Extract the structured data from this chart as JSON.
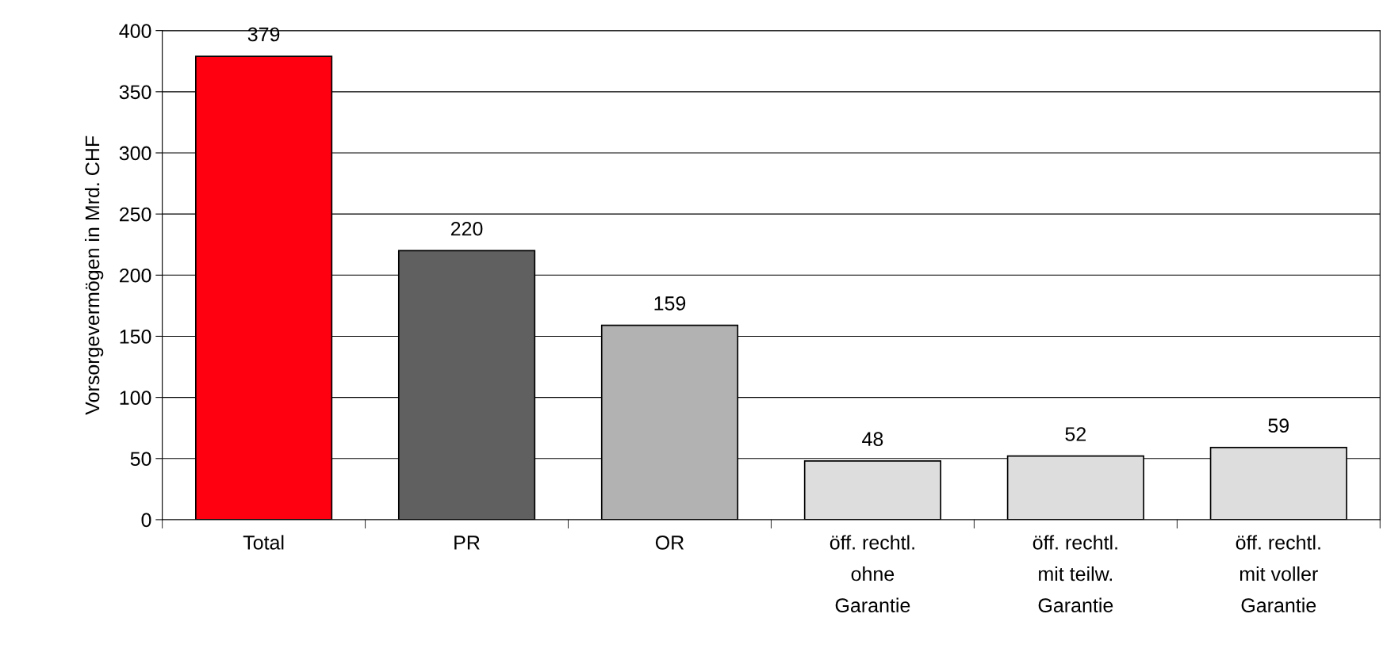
{
  "chart_data": {
    "type": "bar",
    "ylabel": "Vorsorgevermögen in Mrd. CHF",
    "categories": [
      "Total",
      "PR",
      "OR",
      "öff. rechtl.\nohne\nGarantie",
      "öff. rechtl.\nmit teilw.\nGarantie",
      "öff. rechtl.\nmit voller\nGarantie"
    ],
    "values": [
      379,
      220,
      159,
      48,
      52,
      59
    ],
    "colors": [
      "#ff0010",
      "#606060",
      "#b2b2b2",
      "#dddddd",
      "#dddddd",
      "#dddddd"
    ],
    "ylim": [
      0,
      400
    ],
    "yticks": [
      0,
      50,
      100,
      150,
      200,
      250,
      300,
      350,
      400
    ],
    "grid": "y",
    "data_labels": true,
    "legend": false
  }
}
